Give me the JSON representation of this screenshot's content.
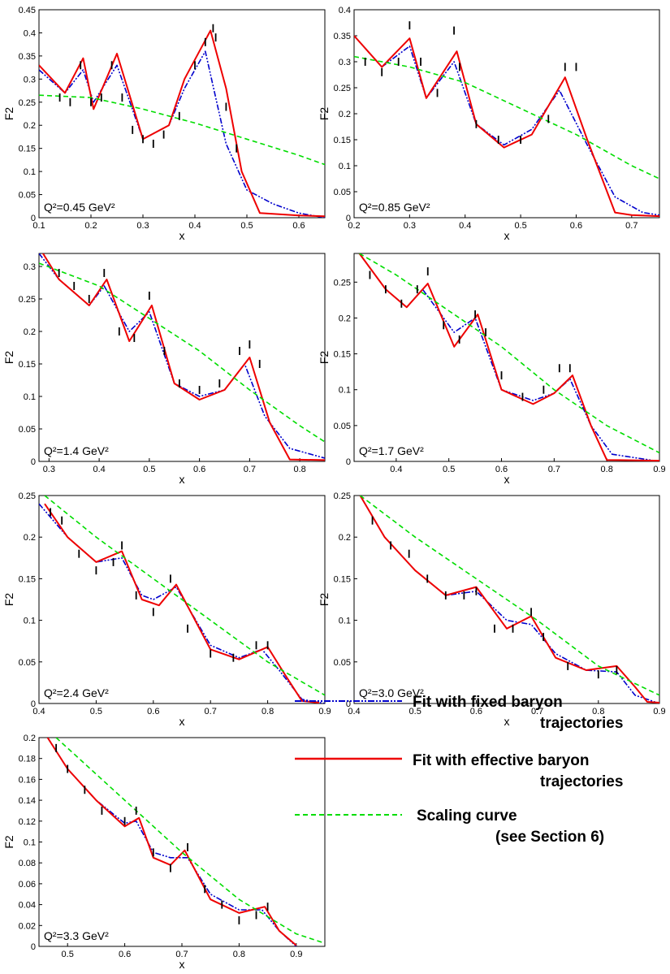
{
  "legend": {
    "fixed": [
      "Fit with fixed baryon",
      "trajectories"
    ],
    "effective": [
      "Fit with effective baryon",
      "trajectories"
    ],
    "scaling": [
      "Scaling curve",
      "(see Section 6)"
    ]
  },
  "colors": {
    "fixed": "#0000cc",
    "effective": "#ee0000",
    "scaling": "#00dd00",
    "data": "#000000"
  },
  "chart_data": [
    {
      "type": "line",
      "qlabel": "Q²=0.45 GeV²",
      "xlabel": "x",
      "ylabel": "F2",
      "xlim": [
        0.1,
        0.65
      ],
      "ylim": [
        0,
        0.45
      ],
      "xticks": [
        "0.1",
        "0.2",
        "0.3",
        "0.4",
        "0.5",
        "0.6"
      ],
      "yticks": [
        "0",
        "0.05",
        "0.1",
        "0.15",
        "0.2",
        "0.25",
        "0.3",
        "0.35",
        "0.4",
        "0.45"
      ],
      "series": [
        {
          "key": "fixed",
          "x": [
            0.1,
            0.15,
            0.185,
            0.205,
            0.25,
            0.3,
            0.35,
            0.38,
            0.42,
            0.46,
            0.5,
            0.55,
            0.6,
            0.65
          ],
          "y": [
            0.32,
            0.27,
            0.32,
            0.25,
            0.33,
            0.17,
            0.2,
            0.28,
            0.36,
            0.16,
            0.06,
            0.03,
            0.01,
            0
          ]
        },
        {
          "key": "effective",
          "x": [
            0.1,
            0.15,
            0.185,
            0.205,
            0.25,
            0.3,
            0.35,
            0.38,
            0.43,
            0.46,
            0.49,
            0.525,
            0.6,
            0.65
          ],
          "y": [
            0.33,
            0.27,
            0.345,
            0.235,
            0.355,
            0.17,
            0.2,
            0.3,
            0.405,
            0.28,
            0.1,
            0.01,
            0.005,
            0.003
          ]
        },
        {
          "key": "scaling",
          "x": [
            0.1,
            0.2,
            0.3,
            0.4,
            0.5,
            0.6,
            0.65
          ],
          "y": [
            0.265,
            0.26,
            0.235,
            0.205,
            0.17,
            0.135,
            0.115
          ]
        },
        {
          "key": "data",
          "x": [
            0.14,
            0.16,
            0.18,
            0.2,
            0.22,
            0.24,
            0.26,
            0.28,
            0.3,
            0.32,
            0.34,
            0.37,
            0.4,
            0.42,
            0.435,
            0.44,
            0.46,
            0.48
          ],
          "y": [
            0.26,
            0.25,
            0.33,
            0.25,
            0.26,
            0.33,
            0.26,
            0.19,
            0.17,
            0.16,
            0.18,
            0.22,
            0.33,
            0.38,
            0.41,
            0.39,
            0.24,
            0.15
          ]
        }
      ]
    },
    {
      "type": "line",
      "qlabel": "Q²=0.85 GeV²",
      "xlabel": "x",
      "ylabel": "F2",
      "xlim": [
        0.2,
        0.75
      ],
      "ylim": [
        0,
        0.4
      ],
      "xticks": [
        "0.2",
        "0.3",
        "0.4",
        "0.5",
        "0.6",
        "0.7"
      ],
      "yticks": [
        "0",
        "0.05",
        "0.1",
        "0.15",
        "0.2",
        "0.25",
        "0.3",
        "0.35",
        "0.4"
      ],
      "series": [
        {
          "key": "fixed",
          "x": [
            0.2,
            0.25,
            0.3,
            0.33,
            0.38,
            0.42,
            0.47,
            0.52,
            0.57,
            0.62,
            0.67,
            0.72,
            0.75
          ],
          "y": [
            0.35,
            0.29,
            0.33,
            0.23,
            0.3,
            0.18,
            0.14,
            0.17,
            0.245,
            0.14,
            0.04,
            0.01,
            0.005
          ]
        },
        {
          "key": "effective",
          "x": [
            0.2,
            0.25,
            0.3,
            0.33,
            0.385,
            0.42,
            0.47,
            0.52,
            0.58,
            0.62,
            0.67,
            0.7,
            0.75
          ],
          "y": [
            0.35,
            0.29,
            0.345,
            0.23,
            0.32,
            0.18,
            0.135,
            0.16,
            0.27,
            0.15,
            0.01,
            0.005,
            0.003
          ]
        },
        {
          "key": "scaling",
          "x": [
            0.2,
            0.3,
            0.4,
            0.5,
            0.6,
            0.7,
            0.75
          ],
          "y": [
            0.31,
            0.29,
            0.26,
            0.21,
            0.16,
            0.1,
            0.075
          ]
        },
        {
          "key": "data",
          "x": [
            0.22,
            0.25,
            0.28,
            0.3,
            0.32,
            0.35,
            0.38,
            0.39,
            0.42,
            0.46,
            0.5,
            0.55,
            0.58,
            0.6
          ],
          "y": [
            0.3,
            0.28,
            0.3,
            0.37,
            0.3,
            0.24,
            0.36,
            0.29,
            0.18,
            0.15,
            0.15,
            0.19,
            0.29,
            0.29
          ]
        }
      ]
    },
    {
      "type": "line",
      "qlabel": "Q²=1.4 GeV²",
      "xlabel": "x",
      "ylabel": "F2",
      "xlim": [
        0.28,
        0.85
      ],
      "ylim": [
        0,
        0.32
      ],
      "xticks": [
        "0.3",
        "0.4",
        "0.5",
        "0.6",
        "0.7",
        "0.8"
      ],
      "yticks": [
        "0",
        "0.05",
        "0.1",
        "0.15",
        "0.2",
        "0.25",
        "0.3"
      ],
      "series": [
        {
          "key": "fixed",
          "x": [
            0.28,
            0.32,
            0.38,
            0.41,
            0.46,
            0.5,
            0.55,
            0.6,
            0.65,
            0.69,
            0.73,
            0.78,
            0.85
          ],
          "y": [
            0.32,
            0.28,
            0.24,
            0.27,
            0.2,
            0.23,
            0.12,
            0.1,
            0.11,
            0.15,
            0.07,
            0.02,
            0.005
          ]
        },
        {
          "key": "effective",
          "x": [
            0.28,
            0.32,
            0.38,
            0.415,
            0.46,
            0.505,
            0.55,
            0.6,
            0.65,
            0.7,
            0.74,
            0.78,
            0.85
          ],
          "y": [
            0.33,
            0.28,
            0.24,
            0.28,
            0.185,
            0.24,
            0.12,
            0.095,
            0.11,
            0.16,
            0.06,
            0.003,
            0.002
          ]
        },
        {
          "key": "scaling",
          "x": [
            0.28,
            0.4,
            0.5,
            0.6,
            0.7,
            0.8,
            0.85
          ],
          "y": [
            0.305,
            0.27,
            0.22,
            0.17,
            0.11,
            0.055,
            0.03
          ]
        },
        {
          "key": "data",
          "x": [
            0.32,
            0.35,
            0.38,
            0.41,
            0.44,
            0.47,
            0.5,
            0.53,
            0.56,
            0.6,
            0.64,
            0.68,
            0.7,
            0.72
          ],
          "y": [
            0.29,
            0.27,
            0.25,
            0.29,
            0.2,
            0.19,
            0.255,
            0.17,
            0.12,
            0.11,
            0.12,
            0.17,
            0.18,
            0.15
          ]
        }
      ]
    },
    {
      "type": "line",
      "qlabel": "Q²=1.7 GeV²",
      "xlabel": "x",
      "ylabel": "F2",
      "xlim": [
        0.32,
        0.9
      ],
      "ylim": [
        0,
        0.29
      ],
      "xticks": [
        "0.4",
        "0.5",
        "0.6",
        "0.7",
        "0.8",
        "0.9"
      ],
      "yticks": [
        "0",
        "0.05",
        "0.1",
        "0.15",
        "0.2",
        "0.25"
      ],
      "series": [
        {
          "key": "fixed",
          "x": [
            0.33,
            0.38,
            0.42,
            0.45,
            0.51,
            0.55,
            0.6,
            0.66,
            0.7,
            0.73,
            0.77,
            0.81,
            0.9
          ],
          "y": [
            0.29,
            0.24,
            0.215,
            0.24,
            0.18,
            0.2,
            0.1,
            0.085,
            0.095,
            0.115,
            0.05,
            0.01,
            0
          ]
        },
        {
          "key": "effective",
          "x": [
            0.33,
            0.38,
            0.42,
            0.46,
            0.51,
            0.555,
            0.6,
            0.66,
            0.7,
            0.735,
            0.77,
            0.8,
            0.9
          ],
          "y": [
            0.29,
            0.24,
            0.215,
            0.248,
            0.16,
            0.205,
            0.1,
            0.08,
            0.095,
            0.12,
            0.05,
            0.002,
            0.001
          ]
        },
        {
          "key": "scaling",
          "x": [
            0.33,
            0.4,
            0.5,
            0.6,
            0.7,
            0.8,
            0.9
          ],
          "y": [
            0.29,
            0.26,
            0.21,
            0.16,
            0.1,
            0.05,
            0.012
          ]
        },
        {
          "key": "data",
          "x": [
            0.35,
            0.38,
            0.41,
            0.44,
            0.46,
            0.49,
            0.52,
            0.55,
            0.57,
            0.6,
            0.64,
            0.68,
            0.71,
            0.73
          ],
          "y": [
            0.26,
            0.24,
            0.22,
            0.24,
            0.265,
            0.19,
            0.17,
            0.205,
            0.18,
            0.12,
            0.09,
            0.1,
            0.13,
            0.13
          ]
        }
      ]
    },
    {
      "type": "line",
      "qlabel": "Q²=2.4 GeV²",
      "xlabel": "x",
      "ylabel": "F2",
      "xlim": [
        0.4,
        0.9
      ],
      "ylim": [
        0,
        0.25
      ],
      "xticks": [
        "0.4",
        "0.5",
        "0.6",
        "0.7",
        "0.8",
        "0.9"
      ],
      "yticks": [
        "0",
        "0.05",
        "0.1",
        "0.15",
        "0.2",
        "0.25"
      ],
      "series": [
        {
          "key": "fixed",
          "x": [
            0.4,
            0.45,
            0.5,
            0.545,
            0.58,
            0.6,
            0.64,
            0.7,
            0.75,
            0.79,
            0.82,
            0.86,
            0.9
          ],
          "y": [
            0.24,
            0.2,
            0.17,
            0.175,
            0.13,
            0.125,
            0.14,
            0.07,
            0.055,
            0.065,
            0.04,
            0.005,
            0
          ]
        },
        {
          "key": "effective",
          "x": [
            0.41,
            0.45,
            0.5,
            0.545,
            0.58,
            0.61,
            0.64,
            0.7,
            0.75,
            0.8,
            0.83,
            0.86,
            0.89
          ],
          "y": [
            0.24,
            0.2,
            0.17,
            0.183,
            0.125,
            0.118,
            0.143,
            0.065,
            0.053,
            0.068,
            0.035,
            0.003,
            0.001
          ]
        },
        {
          "key": "scaling",
          "x": [
            0.41,
            0.5,
            0.6,
            0.7,
            0.8,
            0.9
          ],
          "y": [
            0.25,
            0.2,
            0.15,
            0.1,
            0.05,
            0.01
          ]
        },
        {
          "key": "data",
          "x": [
            0.42,
            0.44,
            0.47,
            0.5,
            0.53,
            0.545,
            0.57,
            0.6,
            0.63,
            0.66,
            0.7,
            0.74,
            0.78,
            0.8
          ],
          "y": [
            0.23,
            0.22,
            0.18,
            0.16,
            0.17,
            0.19,
            0.13,
            0.11,
            0.15,
            0.09,
            0.06,
            0.055,
            0.07,
            0.07
          ]
        }
      ]
    },
    {
      "type": "line",
      "qlabel": "Q²=3.0 GeV²",
      "xlabel": "x",
      "ylabel": "F2",
      "xlim": [
        0.4,
        0.9
      ],
      "ylim": [
        0,
        0.25
      ],
      "xticks": [
        "0.4",
        "0.5",
        "0.6",
        "0.7",
        "0.8",
        "0.9"
      ],
      "yticks": [
        "0",
        "0.05",
        "0.1",
        "0.15",
        "0.2",
        "0.25"
      ],
      "series": [
        {
          "key": "fixed",
          "x": [
            0.41,
            0.45,
            0.5,
            0.55,
            0.6,
            0.65,
            0.69,
            0.73,
            0.78,
            0.83,
            0.86,
            0.9
          ],
          "y": [
            0.25,
            0.2,
            0.16,
            0.13,
            0.135,
            0.1,
            0.095,
            0.06,
            0.04,
            0.038,
            0.01,
            0
          ]
        },
        {
          "key": "effective",
          "x": [
            0.41,
            0.45,
            0.5,
            0.55,
            0.6,
            0.65,
            0.69,
            0.73,
            0.78,
            0.83,
            0.86,
            0.88,
            0.9
          ],
          "y": [
            0.25,
            0.2,
            0.16,
            0.13,
            0.14,
            0.09,
            0.105,
            0.055,
            0.04,
            0.045,
            0.02,
            0.002,
            0.001
          ]
        },
        {
          "key": "scaling",
          "x": [
            0.41,
            0.5,
            0.6,
            0.7,
            0.8,
            0.9
          ],
          "y": [
            0.25,
            0.2,
            0.15,
            0.1,
            0.045,
            0.01
          ]
        },
        {
          "key": "data",
          "x": [
            0.43,
            0.46,
            0.49,
            0.52,
            0.55,
            0.58,
            0.6,
            0.63,
            0.66,
            0.69,
            0.71,
            0.75,
            0.8,
            0.83
          ],
          "y": [
            0.22,
            0.19,
            0.18,
            0.15,
            0.13,
            0.13,
            0.135,
            0.09,
            0.09,
            0.11,
            0.08,
            0.045,
            0.035,
            0.04
          ]
        }
      ]
    },
    {
      "type": "line",
      "qlabel": "Q²=3.3 GeV²",
      "xlabel": "x",
      "ylabel": "F2",
      "xlim": [
        0.45,
        0.95
      ],
      "ylim": [
        0,
        0.2
      ],
      "xticks": [
        "0.5",
        "0.6",
        "0.7",
        "0.8",
        "0.9"
      ],
      "yticks": [
        "0",
        "0.02",
        "0.04",
        "0.06",
        "0.08",
        "0.1",
        "0.12",
        "0.14",
        "0.16",
        "0.18",
        "0.2"
      ],
      "series": [
        {
          "key": "fixed",
          "x": [
            0.465,
            0.5,
            0.55,
            0.6,
            0.62,
            0.65,
            0.68,
            0.71,
            0.75,
            0.8,
            0.84,
            0.87,
            0.9
          ],
          "y": [
            0.2,
            0.17,
            0.14,
            0.118,
            0.12,
            0.09,
            0.085,
            0.085,
            0.05,
            0.035,
            0.035,
            0.015,
            0
          ]
        },
        {
          "key": "effective",
          "x": [
            0.465,
            0.5,
            0.55,
            0.6,
            0.625,
            0.65,
            0.68,
            0.705,
            0.75,
            0.8,
            0.845,
            0.87,
            0.9
          ],
          "y": [
            0.2,
            0.17,
            0.14,
            0.115,
            0.123,
            0.085,
            0.078,
            0.092,
            0.045,
            0.032,
            0.038,
            0.015,
            0.001
          ]
        },
        {
          "key": "scaling",
          "x": [
            0.48,
            0.6,
            0.7,
            0.8,
            0.9,
            0.95
          ],
          "y": [
            0.2,
            0.14,
            0.09,
            0.045,
            0.012,
            0.003
          ]
        },
        {
          "key": "data",
          "x": [
            0.48,
            0.5,
            0.53,
            0.56,
            0.6,
            0.62,
            0.65,
            0.68,
            0.71,
            0.74,
            0.77,
            0.8,
            0.83,
            0.85
          ],
          "y": [
            0.19,
            0.17,
            0.15,
            0.13,
            0.12,
            0.13,
            0.09,
            0.075,
            0.095,
            0.055,
            0.04,
            0.025,
            0.03,
            0.038
          ]
        }
      ]
    }
  ]
}
